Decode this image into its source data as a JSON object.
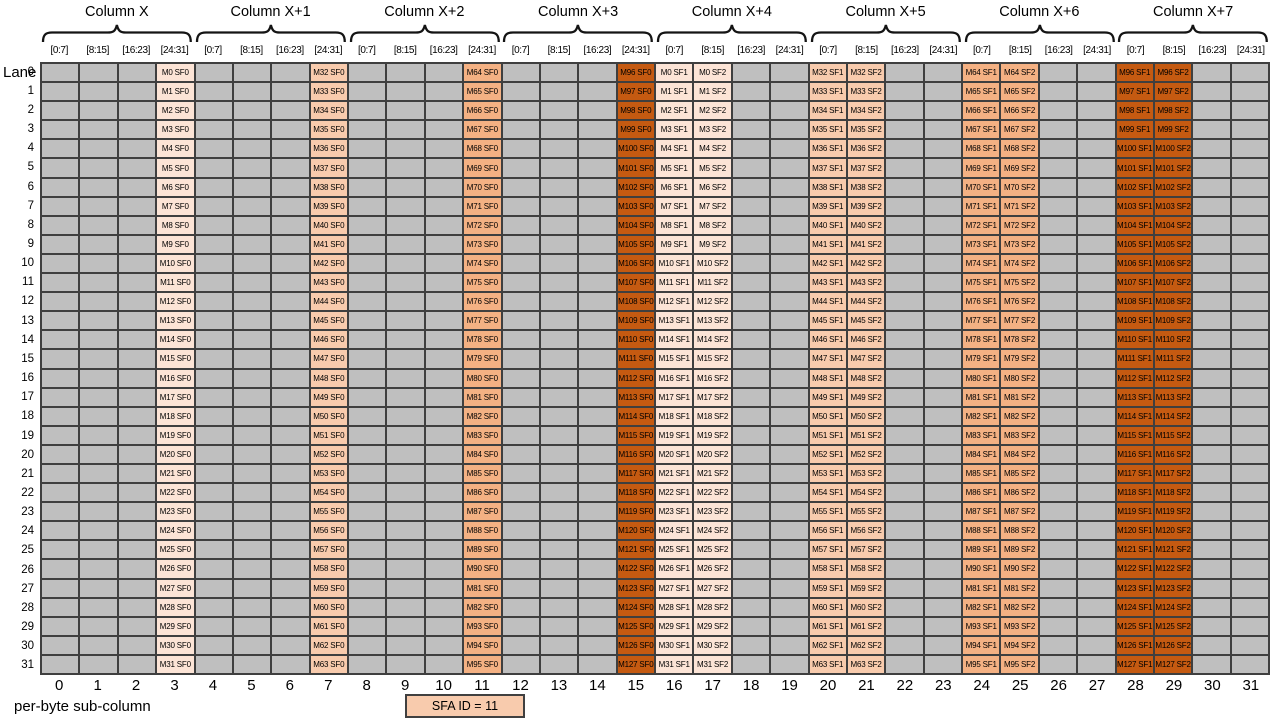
{
  "diagram": {
    "lane_axis_label": "Lane",
    "column_groups": [
      "Column X",
      "Column X+1",
      "Column X+2",
      "Column X+3",
      "Column X+4",
      "Column X+5",
      "Column X+6",
      "Column X+7"
    ],
    "byte_ranges": [
      "[0:7]",
      "[8:15]",
      "[16:23]",
      "[24:31]"
    ],
    "lane_numbers": [
      0,
      1,
      2,
      3,
      4,
      5,
      6,
      7,
      8,
      9,
      10,
      11,
      12,
      13,
      14,
      15,
      16,
      17,
      18,
      19,
      20,
      21,
      22,
      23,
      24,
      25,
      26,
      27,
      28,
      29,
      30,
      31
    ],
    "subcol_numbers": [
      0,
      1,
      2,
      3,
      4,
      5,
      6,
      7,
      8,
      9,
      10,
      11,
      12,
      13,
      14,
      15,
      16,
      17,
      18,
      19,
      20,
      21,
      22,
      23,
      24,
      25,
      26,
      27,
      28,
      29,
      30,
      31
    ],
    "bottom_axis_label": "per-byte sub-column",
    "legend_label": "SFA ID = 11"
  },
  "colors": {
    "shade1": "#FCE4D6",
    "shade2": "#F8CBAD",
    "shade3": "#F4B183",
    "shade4": "#C55A11",
    "empty_cell": "#BFBFBF",
    "grid_line": "#3F3F3F",
    "legend_fill": "#F8CBAD"
  },
  "grid": {
    "num_lanes": 32,
    "num_subcols": 32,
    "filled_columns": [
      {
        "subcol": 3,
        "shade": "shade1",
        "cells": [
          "M0 SF0",
          "M1 SF0",
          "M2 SF0",
          "M3 SF0",
          "M4 SF0",
          "M5 SF0",
          "M6 SF0",
          "M7 SF0",
          "M8 SF0",
          "M9 SF0",
          "M10 SF0",
          "M11 SF0",
          "M12 SF0",
          "M13 SF0",
          "M14 SF0",
          "M15 SF0",
          "M16 SF0",
          "M17 SF0",
          "M18 SF0",
          "M19 SF0",
          "M20 SF0",
          "M21 SF0",
          "M22 SF0",
          "M23 SF0",
          "M24 SF0",
          "M25 SF0",
          "M26 SF0",
          "M27 SF0",
          "M28 SF0",
          "M29 SF0",
          "M30 SF0",
          "M31 SF0"
        ]
      },
      {
        "subcol": 7,
        "shade": "shade2",
        "cells": [
          "M32 SF0",
          "M33 SF0",
          "M34 SF0",
          "M35 SF0",
          "M36 SF0",
          "M37 SF0",
          "M38 SF0",
          "M39 SF0",
          "M40 SF0",
          "M41 SF0",
          "M42 SF0",
          "M43 SF0",
          "M44 SF0",
          "M45 SF0",
          "M46 SF0",
          "M47 SF0",
          "M48 SF0",
          "M49 SF0",
          "M50 SF0",
          "M51 SF0",
          "M52 SF0",
          "M53 SF0",
          "M54 SF0",
          "M55 SF0",
          "M56 SF0",
          "M57 SF0",
          "M58 SF0",
          "M59 SF0",
          "M60 SF0",
          "M61 SF0",
          "M62 SF0",
          "M63 SF0"
        ]
      },
      {
        "subcol": 11,
        "shade": "shade3",
        "cells": [
          "M64 SF0",
          "M65 SF0",
          "M66 SF0",
          "M67 SF0",
          "M68 SF0",
          "M69 SF0",
          "M70 SF0",
          "M71 SF0",
          "M72 SF0",
          "M73 SF0",
          "M74 SF0",
          "M75 SF0",
          "M76 SF0",
          "M77 SF0",
          "M78 SF0",
          "M79 SF0",
          "M80 SF0",
          "M81 SF0",
          "M82 SF0",
          "M83 SF0",
          "M84 SF0",
          "M85 SF0",
          "M86 SF0",
          "M87 SF0",
          "M88 SF0",
          "M89 SF0",
          "M90 SF0",
          "M81 SF0",
          "M82 SF0",
          "M93 SF0",
          "M94 SF0",
          "M95 SF0"
        ]
      },
      {
        "subcol": 15,
        "shade": "shade4",
        "cells": [
          "M96 SF0",
          "M97 SF0",
          "M98 SF0",
          "M99 SF0",
          "M100 SF0",
          "M101 SF0",
          "M102 SF0",
          "M103 SF0",
          "M104 SF0",
          "M105 SF0",
          "M106 SF0",
          "M107 SF0",
          "M108 SF0",
          "M109 SF0",
          "M110 SF0",
          "M111 SF0",
          "M112 SF0",
          "M113 SF0",
          "M114 SF0",
          "M115 SF0",
          "M116 SF0",
          "M117 SF0",
          "M118 SF0",
          "M119 SF0",
          "M120 SF0",
          "M121 SF0",
          "M122 SF0",
          "M123 SF0",
          "M124 SF0",
          "M125 SF0",
          "M126 SF0",
          "M127 SF0"
        ]
      },
      {
        "subcol": 16,
        "shade": "shade1",
        "cells": [
          "M0 SF1",
          "M1 SF1",
          "M2 SF1",
          "M3 SF1",
          "M4 SF1",
          "M5 SF1",
          "M6 SF1",
          "M7 SF1",
          "M8 SF1",
          "M9 SF1",
          "M10 SF1",
          "M11 SF1",
          "M12 SF1",
          "M13 SF1",
          "M14 SF1",
          "M15 SF1",
          "M16 SF1",
          "M17 SF1",
          "M18 SF1",
          "M19 SF1",
          "M20 SF1",
          "M21 SF1",
          "M22 SF1",
          "M23 SF1",
          "M24 SF1",
          "M25 SF1",
          "M26 SF1",
          "M27 SF1",
          "M28 SF1",
          "M29 SF1",
          "M30 SF1",
          "M31 SF1"
        ]
      },
      {
        "subcol": 17,
        "shade": "shade1",
        "cells": [
          "M0 SF2",
          "M1 SF2",
          "M2 SF2",
          "M3 SF2",
          "M4 SF2",
          "M5 SF2",
          "M6 SF2",
          "M7 SF2",
          "M8 SF2",
          "M9 SF2",
          "M10 SF2",
          "M11 SF2",
          "M12 SF2",
          "M13 SF2",
          "M14 SF2",
          "M15 SF2",
          "M16 SF2",
          "M17 SF2",
          "M18 SF2",
          "M19 SF2",
          "M20 SF2",
          "M21 SF2",
          "M22 SF2",
          "M23 SF2",
          "M24 SF2",
          "M25 SF2",
          "M26 SF2",
          "M27 SF2",
          "M28 SF2",
          "M29 SF2",
          "M30 SF2",
          "M31 SF2"
        ]
      },
      {
        "subcol": 20,
        "shade": "shade2",
        "cells": [
          "M32 SF1",
          "M33 SF1",
          "M34 SF1",
          "M35 SF1",
          "M36 SF1",
          "M37 SF1",
          "M38 SF1",
          "M39 SF1",
          "M40 SF1",
          "M41 SF1",
          "M42 SF1",
          "M43 SF1",
          "M44 SF1",
          "M45 SF1",
          "M46 SF1",
          "M47 SF1",
          "M48 SF1",
          "M49 SF1",
          "M50 SF1",
          "M51 SF1",
          "M52 SF1",
          "M53 SF1",
          "M54 SF1",
          "M55 SF1",
          "M56 SF1",
          "M57 SF1",
          "M58 SF1",
          "M59 SF1",
          "M60 SF1",
          "M61 SF1",
          "M62 SF1",
          "M63 SF1"
        ]
      },
      {
        "subcol": 21,
        "shade": "shade2",
        "cells": [
          "M32 SF2",
          "M33 SF2",
          "M34 SF2",
          "M35 SF2",
          "M36 SF2",
          "M37 SF2",
          "M38 SF2",
          "M39 SF2",
          "M40 SF2",
          "M41 SF2",
          "M42 SF2",
          "M43 SF2",
          "M44 SF2",
          "M45 SF2",
          "M46 SF2",
          "M47 SF2",
          "M48 SF2",
          "M49 SF2",
          "M50 SF2",
          "M51 SF2",
          "M52 SF2",
          "M53 SF2",
          "M54 SF2",
          "M55 SF2",
          "M56 SF2",
          "M57 SF2",
          "M58 SF2",
          "M59 SF2",
          "M60 SF2",
          "M61 SF2",
          "M62 SF2",
          "M63 SF2"
        ]
      },
      {
        "subcol": 24,
        "shade": "shade3",
        "cells": [
          "M64 SF1",
          "M65 SF1",
          "M66 SF1",
          "M67 SF1",
          "M68 SF1",
          "M69 SF1",
          "M70 SF1",
          "M71 SF1",
          "M72 SF1",
          "M73 SF1",
          "M74 SF1",
          "M75 SF1",
          "M76 SF1",
          "M77 SF1",
          "M78 SF1",
          "M79 SF1",
          "M80 SF1",
          "M81 SF1",
          "M82 SF1",
          "M83 SF1",
          "M84 SF1",
          "M85 SF1",
          "M86 SF1",
          "M87 SF1",
          "M88 SF1",
          "M89 SF1",
          "M90 SF1",
          "M81 SF1",
          "M82 SF1",
          "M93 SF1",
          "M94 SF1",
          "M95 SF1"
        ]
      },
      {
        "subcol": 25,
        "shade": "shade3",
        "cells": [
          "M64 SF2",
          "M65 SF2",
          "M66 SF2",
          "M67 SF2",
          "M68 SF2",
          "M69 SF2",
          "M70 SF2",
          "M71 SF2",
          "M72 SF2",
          "M73 SF2",
          "M74 SF2",
          "M75 SF2",
          "M76 SF2",
          "M77 SF2",
          "M78 SF2",
          "M79 SF2",
          "M80 SF2",
          "M81 SF2",
          "M82 SF2",
          "M83 SF2",
          "M84 SF2",
          "M85 SF2",
          "M86 SF2",
          "M87 SF2",
          "M88 SF2",
          "M89 SF2",
          "M90 SF2",
          "M81 SF2",
          "M82 SF2",
          "M93 SF2",
          "M94 SF2",
          "M95 SF2"
        ]
      },
      {
        "subcol": 28,
        "shade": "shade4",
        "cells": [
          "M96 SF1",
          "M97 SF1",
          "M98 SF1",
          "M99 SF1",
          "M100 SF1",
          "M101 SF1",
          "M102 SF1",
          "M103 SF1",
          "M104 SF1",
          "M105 SF1",
          "M106 SF1",
          "M107 SF1",
          "M108 SF1",
          "M109 SF1",
          "M110 SF1",
          "M111 SF1",
          "M112 SF1",
          "M113 SF1",
          "M114 SF1",
          "M115 SF1",
          "M116 SF1",
          "M117 SF1",
          "M118 SF1",
          "M119 SF1",
          "M120 SF1",
          "M121 SF1",
          "M122 SF1",
          "M123 SF1",
          "M124 SF1",
          "M125 SF1",
          "M126 SF1",
          "M127 SF1"
        ]
      },
      {
        "subcol": 29,
        "shade": "shade4",
        "cells": [
          "M96 SF2",
          "M97 SF2",
          "M98 SF2",
          "M99 SF2",
          "M100 SF2",
          "M101 SF2",
          "M102 SF2",
          "M103 SF2",
          "M104 SF2",
          "M105 SF2",
          "M106 SF2",
          "M107 SF2",
          "M108 SF2",
          "M109 SF2",
          "M110 SF2",
          "M111 SF2",
          "M112 SF2",
          "M113 SF2",
          "M114 SF2",
          "M115 SF2",
          "M116 SF2",
          "M117 SF2",
          "M118 SF2",
          "M119 SF2",
          "M120 SF2",
          "M121 SF2",
          "M122 SF2",
          "M123 SF2",
          "M124 SF2",
          "M125 SF2",
          "M126 SF2",
          "M127 SF2"
        ]
      }
    ]
  }
}
